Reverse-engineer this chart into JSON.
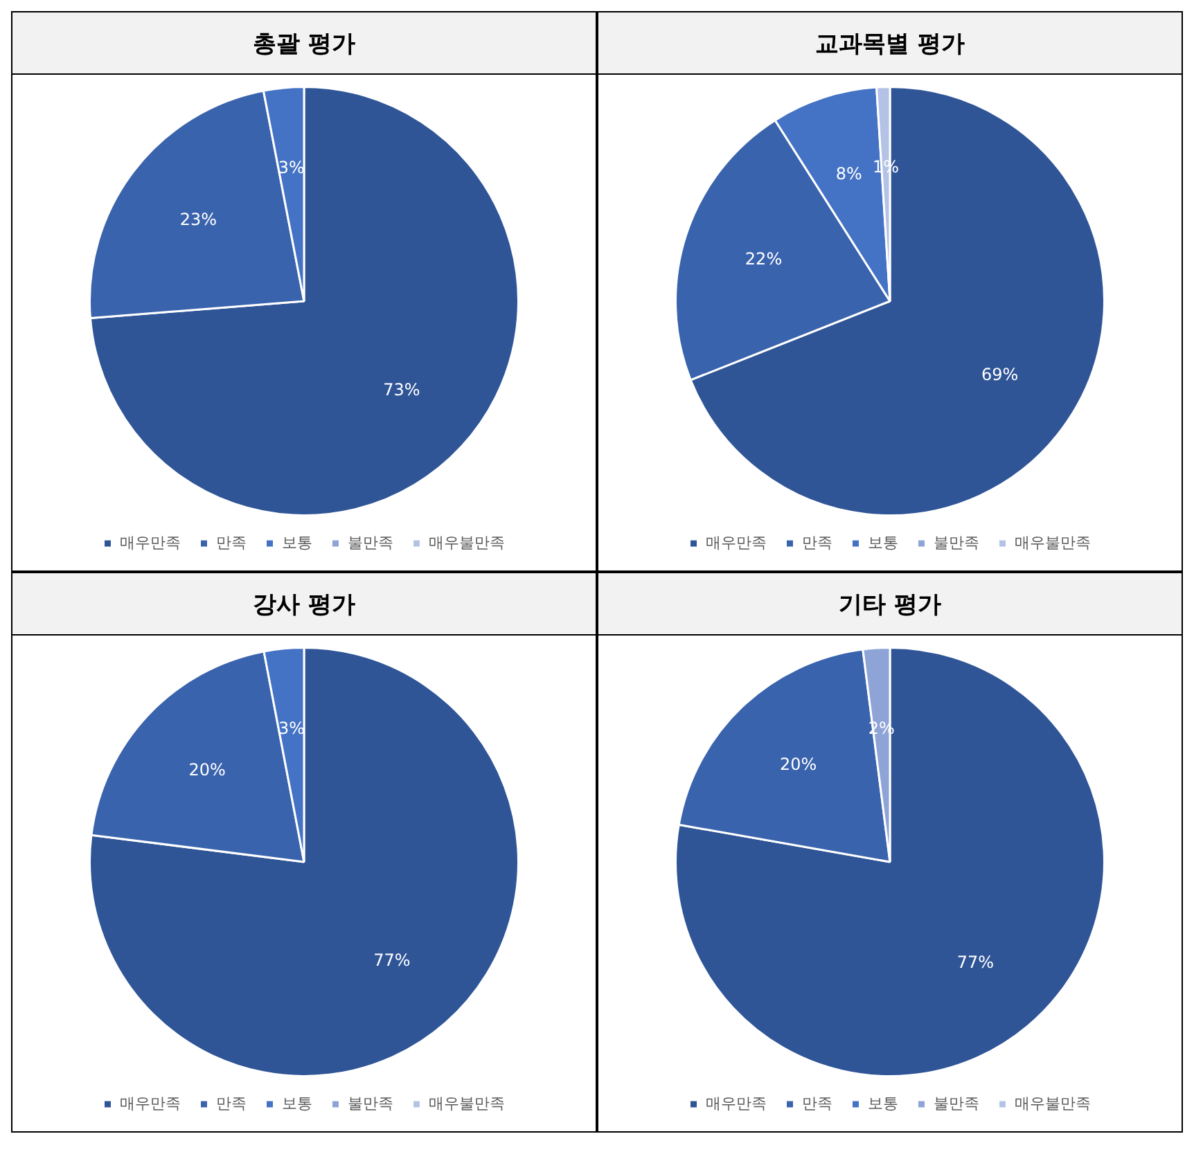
{
  "chart_data": [
    {
      "type": "pie",
      "title": "총괄 평가",
      "categories": [
        "매우만족",
        "만족",
        "보통",
        "불만족",
        "매우불만족"
      ],
      "values": [
        73,
        23,
        3,
        null,
        null
      ],
      "colors": [
        "#2f5597",
        "#3a63ad",
        "#4472c4",
        "#8fa4d6",
        "#b4c2e6"
      ],
      "value_labels": [
        "73%",
        "23%",
        "3%",
        null,
        null
      ],
      "legend": "bottom"
    },
    {
      "type": "pie",
      "title": "교과목별 평가",
      "categories": [
        "매우만족",
        "만족",
        "보통",
        "불만족",
        "매우불만족"
      ],
      "values": [
        69,
        22,
        8,
        null,
        1
      ],
      "colors": [
        "#2f5597",
        "#3a63ad",
        "#4472c4",
        "#8fa4d6",
        "#b4c2e6"
      ],
      "value_labels": [
        "69%",
        "22%",
        "8%",
        null,
        "1%"
      ],
      "legend": "bottom"
    },
    {
      "type": "pie",
      "title": "강사 평가",
      "categories": [
        "매우만족",
        "만족",
        "보통",
        "불만족",
        "매우불만족"
      ],
      "values": [
        77,
        20,
        3,
        null,
        null
      ],
      "colors": [
        "#2f5597",
        "#3a63ad",
        "#4472c4",
        "#8fa4d6",
        "#b4c2e6"
      ],
      "value_labels": [
        "77%",
        "20%",
        "3%",
        null,
        null
      ],
      "legend": "bottom"
    },
    {
      "type": "pie",
      "title": "기타 평가",
      "categories": [
        "매우만족",
        "만족",
        "보통",
        "불만족",
        "매우불만족"
      ],
      "values": [
        77,
        20,
        null,
        2,
        null
      ],
      "colors": [
        "#2f5597",
        "#3a63ad",
        "#4472c4",
        "#8fa4d6",
        "#b4c2e6"
      ],
      "value_labels": [
        "77%",
        "20%",
        null,
        "2%",
        null
      ],
      "legend": "bottom"
    }
  ]
}
